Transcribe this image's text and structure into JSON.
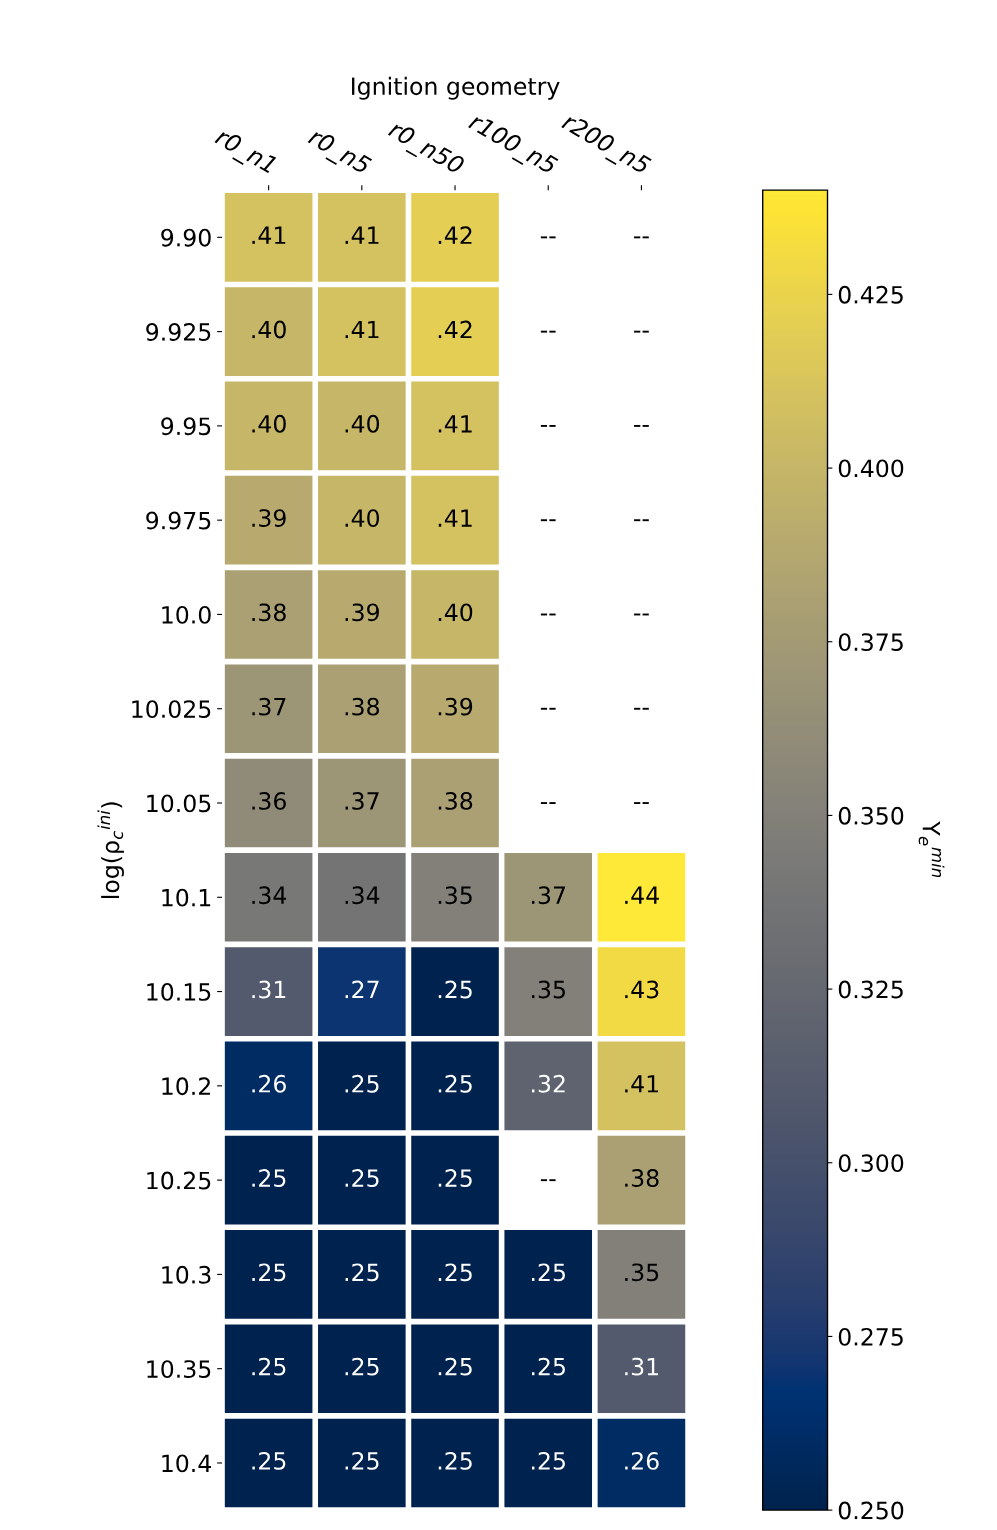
{
  "chart_data": {
    "type": "heatmap",
    "xlabel": "Ignition geometry",
    "ylabel": "log(ρ$_{c}$$^{ini}$)",
    "clabel": "Y$_{e}$$^{min}$",
    "categories": [
      "r0_n1",
      "r0_n5",
      "r0_n50",
      "r100_n5",
      "r200_n5"
    ],
    "y_categories": [
      "9.90",
      "9.925",
      "9.95",
      "9.975",
      "10.0",
      "10.025",
      "10.05",
      "10.1",
      "10.15",
      "10.2",
      "10.25",
      "10.3",
      "10.35",
      "10.4"
    ],
    "cells": [
      [
        0.41,
        0.41,
        0.42,
        null,
        null
      ],
      [
        0.4,
        0.41,
        0.42,
        null,
        null
      ],
      [
        0.4,
        0.4,
        0.41,
        null,
        null
      ],
      [
        0.39,
        0.4,
        0.41,
        null,
        null
      ],
      [
        0.38,
        0.39,
        0.4,
        null,
        null
      ],
      [
        0.37,
        0.38,
        0.39,
        null,
        null
      ],
      [
        0.36,
        0.37,
        0.38,
        null,
        null
      ],
      [
        0.342,
        0.338,
        0.35,
        0.37,
        0.44
      ],
      [
        0.31,
        0.27,
        0.25,
        0.35,
        0.43
      ],
      [
        0.26,
        0.25,
        0.25,
        0.32,
        0.41
      ],
      [
        0.25,
        0.25,
        0.25,
        null,
        0.38
      ],
      [
        0.25,
        0.25,
        0.25,
        0.25,
        0.35
      ],
      [
        0.25,
        0.25,
        0.25,
        0.25,
        0.31
      ],
      [
        0.25,
        0.25,
        0.25,
        0.25,
        0.26
      ]
    ],
    "cell_labels": [
      [
        ".41",
        ".41",
        ".42",
        "--",
        "--"
      ],
      [
        ".40",
        ".41",
        ".42",
        "--",
        "--"
      ],
      [
        ".40",
        ".40",
        ".41",
        "--",
        "--"
      ],
      [
        ".39",
        ".40",
        ".41",
        "--",
        "--"
      ],
      [
        ".38",
        ".39",
        ".40",
        "--",
        "--"
      ],
      [
        ".37",
        ".38",
        ".39",
        "--",
        "--"
      ],
      [
        ".36",
        ".37",
        ".38",
        "--",
        "--"
      ],
      [
        ".34",
        ".34",
        ".35",
        ".37",
        ".44"
      ],
      [
        ".31",
        ".27",
        ".25",
        ".35",
        ".43"
      ],
      [
        ".26",
        ".25",
        ".25",
        ".32",
        ".41"
      ],
      [
        ".25",
        ".25",
        ".25",
        "--",
        ".38"
      ],
      [
        ".25",
        ".25",
        ".25",
        ".25",
        ".35"
      ],
      [
        ".25",
        ".25",
        ".25",
        ".25",
        ".31"
      ],
      [
        ".25",
        ".25",
        ".25",
        ".25",
        ".26"
      ]
    ],
    "clim": [
      0.25,
      0.44
    ],
    "cticks": [
      {
        "value": 0.25,
        "label": "0.250"
      },
      {
        "value": 0.275,
        "label": "0.275"
      },
      {
        "value": 0.3,
        "label": "0.300"
      },
      {
        "value": 0.325,
        "label": "0.325"
      },
      {
        "value": 0.35,
        "label": "0.350"
      },
      {
        "value": 0.375,
        "label": "0.375"
      },
      {
        "value": 0.4,
        "label": "0.400"
      },
      {
        "value": 0.425,
        "label": "0.425"
      }
    ]
  }
}
